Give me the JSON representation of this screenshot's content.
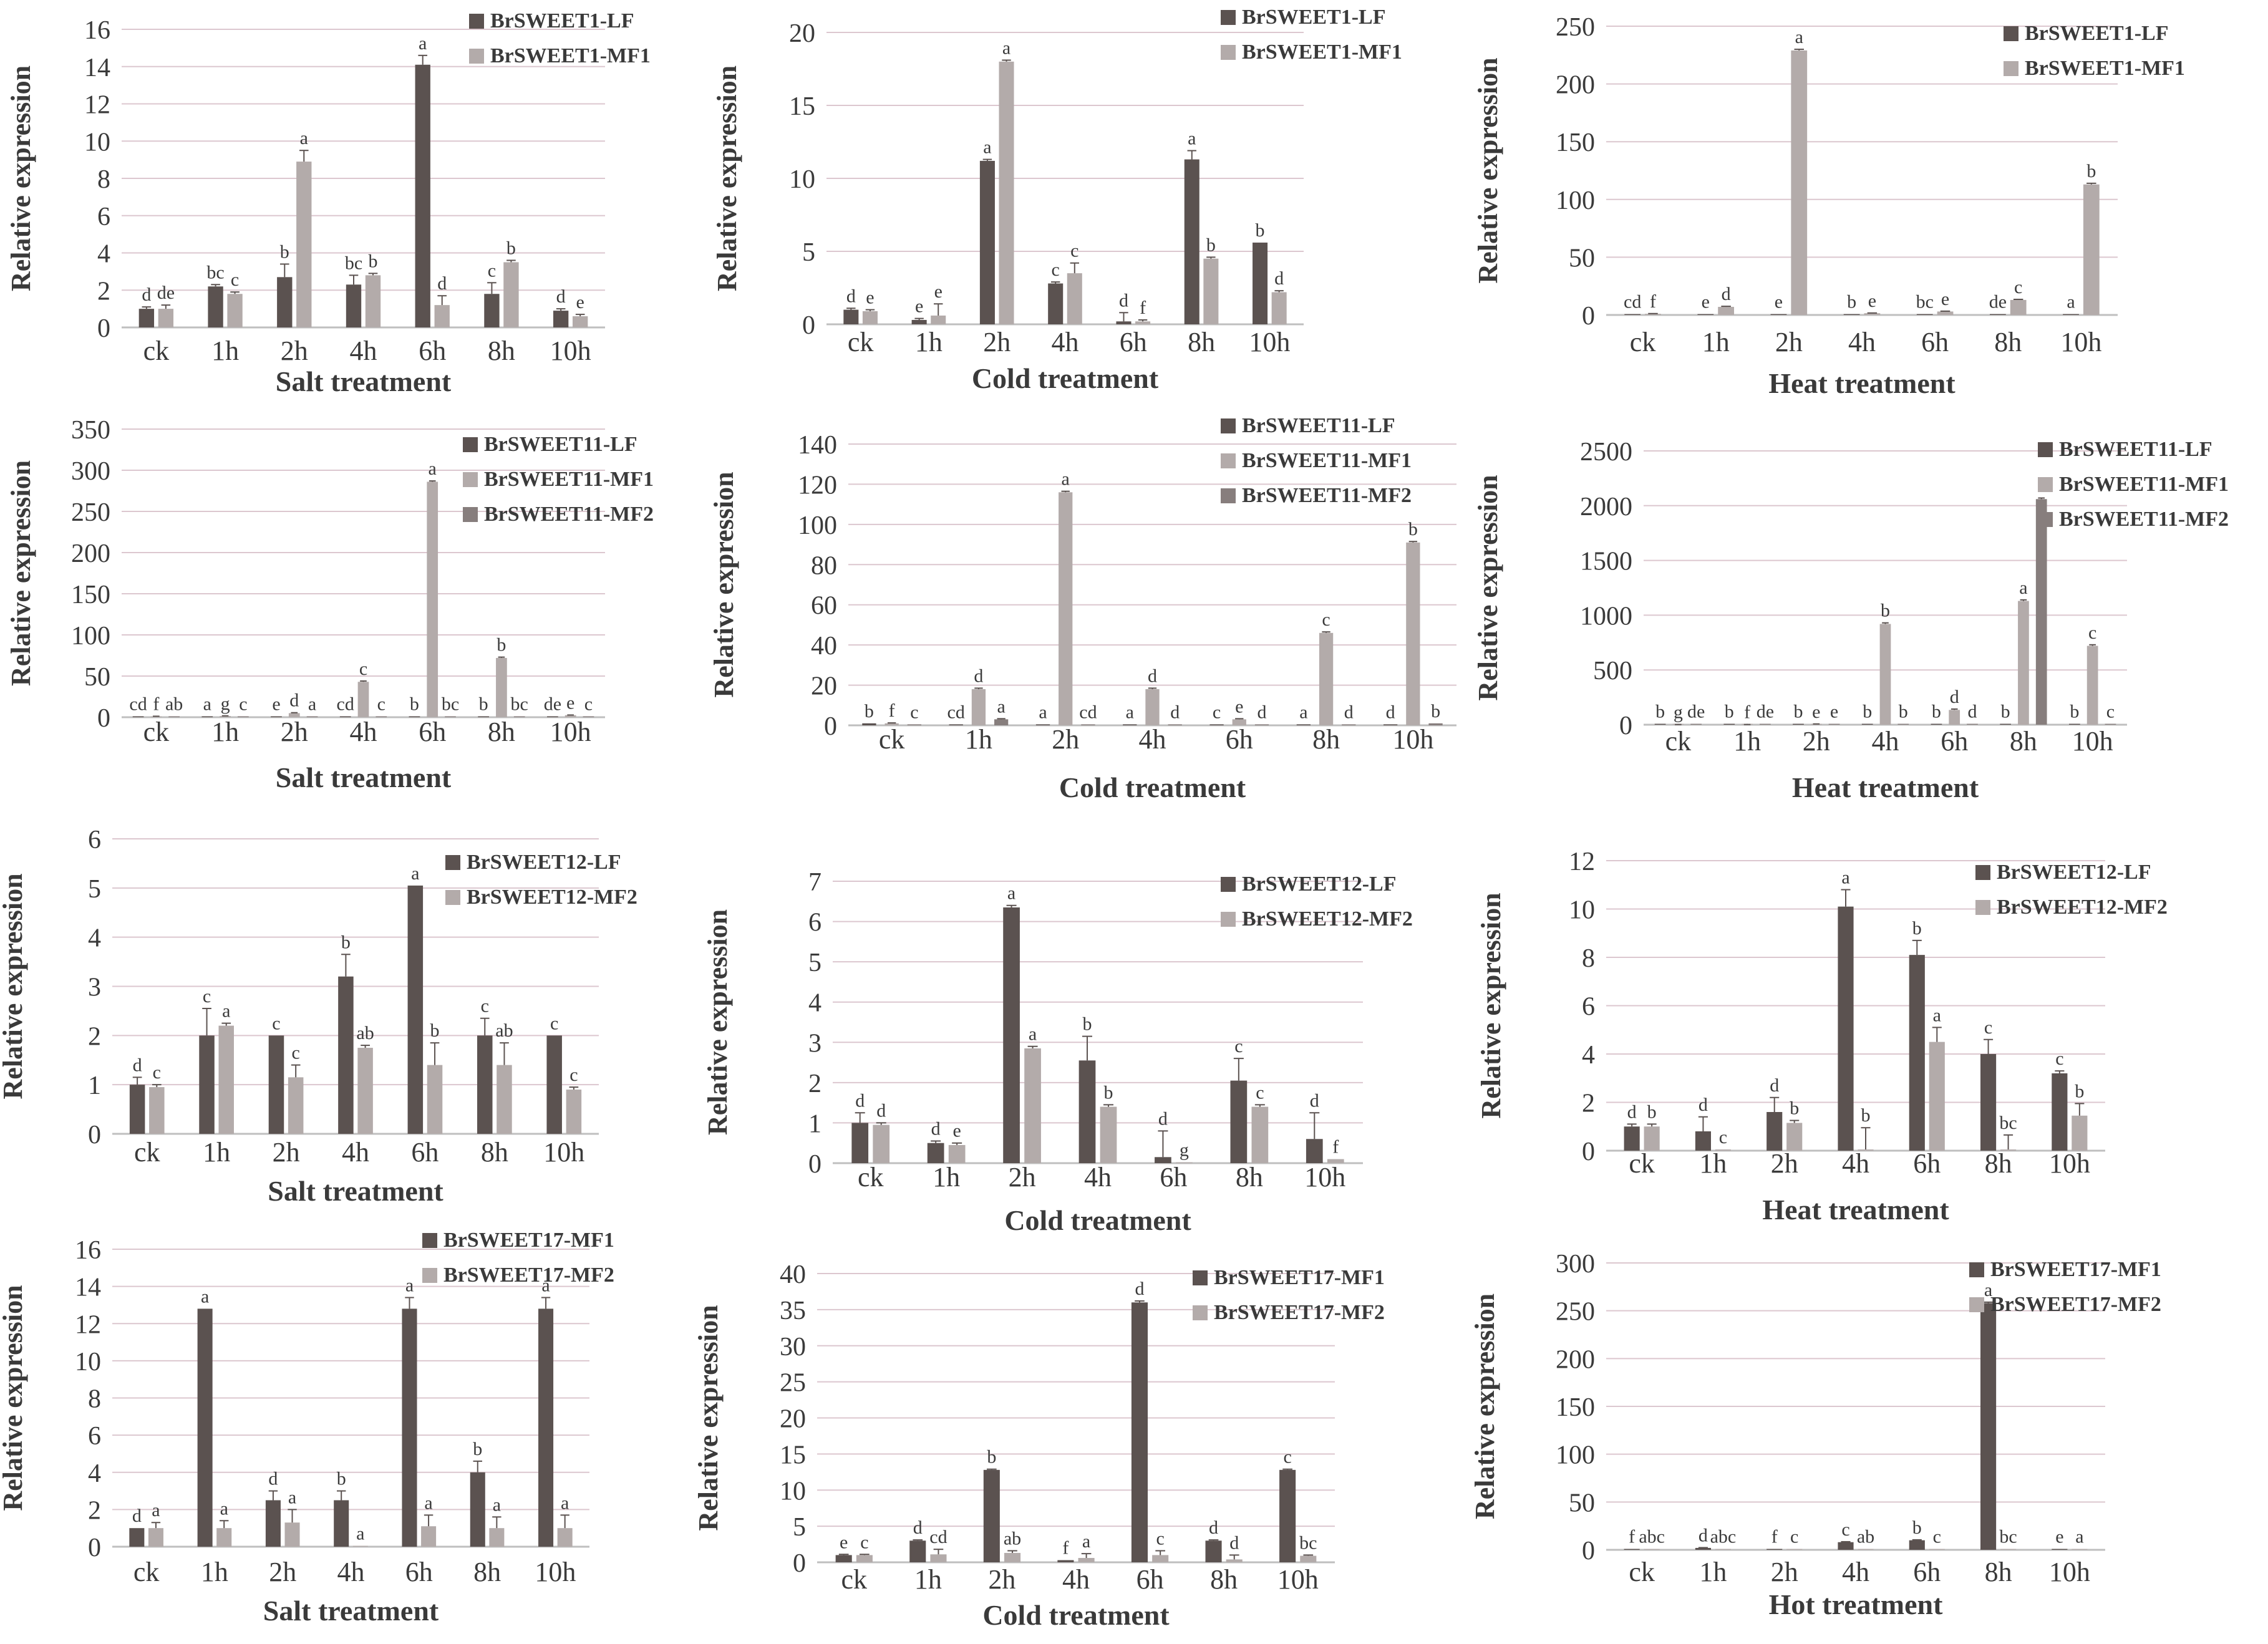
{
  "figure": {
    "times": [
      "ck",
      "1h",
      "2h",
      "4h",
      "6h",
      "8h",
      "10h"
    ],
    "ylabel": "Relative expression",
    "colors": {
      "dark": "#5b5250",
      "light": "#b3abaa",
      "mid": "#877e7d",
      "grid": "#dcc7cf",
      "axis": "#bfbfbf",
      "text": "#3a3a3a"
    }
  },
  "chart_data": [
    {
      "type": "bar",
      "title": "",
      "xlabel": "Salt treatment",
      "ylabel": "Relative expression",
      "categories": [
        "ck",
        "1h",
        "2h",
        "4h",
        "6h",
        "8h",
        "10h"
      ],
      "ylim": [
        0,
        16
      ],
      "yticks": [
        0,
        2,
        4,
        6,
        8,
        10,
        12,
        14,
        16
      ],
      "series": [
        {
          "name": "BrSWEET1-LF",
          "values": [
            1.0,
            2.2,
            2.7,
            2.3,
            14.1,
            1.8,
            0.9
          ],
          "errors": [
            0.1,
            0.1,
            0.7,
            0.5,
            0.5,
            0.6,
            0.1
          ],
          "letters": [
            "d",
            "bc",
            "b",
            "bc",
            "a",
            "c",
            "d"
          ]
        },
        {
          "name": "BrSWEET1-MF1",
          "values": [
            1.0,
            1.8,
            8.9,
            2.8,
            1.2,
            3.5,
            0.6
          ],
          "errors": [
            0.2,
            0.1,
            0.6,
            0.1,
            0.5,
            0.1,
            0.1
          ],
          "letters": [
            "de",
            "c",
            "a",
            "b",
            "d",
            "b",
            "e"
          ]
        }
      ]
    },
    {
      "type": "bar",
      "title": "",
      "xlabel": "Cold treatment",
      "ylabel": "Relative expression",
      "categories": [
        "ck",
        "1h",
        "2h",
        "4h",
        "6h",
        "8h",
        "10h"
      ],
      "ylim": [
        0,
        20
      ],
      "yticks": [
        0,
        5,
        10,
        15,
        20
      ],
      "series": [
        {
          "name": "BrSWEET1-LF",
          "values": [
            1.0,
            0.3,
            11.2,
            2.8,
            0.2,
            11.3,
            5.6
          ],
          "errors": [
            0.1,
            0.1,
            0.1,
            0.1,
            0.6,
            0.6,
            0.0
          ],
          "letters": [
            "d",
            "e",
            "a",
            "c",
            "d",
            "a",
            "b"
          ]
        },
        {
          "name": "BrSWEET1-MF1",
          "values": [
            0.9,
            0.6,
            18.0,
            3.5,
            0.2,
            4.5,
            2.2
          ],
          "errors": [
            0.1,
            0.8,
            0.1,
            0.7,
            0.1,
            0.1,
            0.1
          ],
          "letters": [
            "e",
            "e",
            "a",
            "c",
            "f",
            "b",
            "d"
          ]
        }
      ]
    },
    {
      "type": "bar",
      "title": "",
      "xlabel": "Heat treatment",
      "ylabel": "Relative expression",
      "categories": [
        "ck",
        "1h",
        "2h",
        "4h",
        "6h",
        "8h",
        "10h"
      ],
      "ylim": [
        0,
        250
      ],
      "yticks": [
        0,
        50,
        100,
        150,
        200,
        250
      ],
      "series": [
        {
          "name": "BrSWEET1-LF",
          "values": [
            0.5,
            0.5,
            0.5,
            0.5,
            0.5,
            0.5,
            0.5
          ],
          "errors": [
            0,
            0,
            0,
            0,
            0,
            0,
            0
          ],
          "letters": [
            "cd",
            "e",
            "e",
            "b",
            "bc",
            "de",
            "a"
          ]
        },
        {
          "name": "BrSWEET1-MF1",
          "values": [
            1.0,
            7.0,
            229.0,
            1.5,
            3.0,
            13.0,
            113.0
          ],
          "errors": [
            0.2,
            0.5,
            1.0,
            0.2,
            0.3,
            0.5,
            1.0
          ],
          "letters": [
            "f",
            "d",
            "a",
            "e",
            "e",
            "c",
            "b"
          ]
        }
      ]
    },
    {
      "type": "bar",
      "title": "",
      "xlabel": "Salt treatment",
      "ylabel": "Relative expression",
      "categories": [
        "ck",
        "1h",
        "2h",
        "4h",
        "6h",
        "8h",
        "10h"
      ],
      "ylim": [
        0,
        350
      ],
      "yticks": [
        0,
        50,
        100,
        150,
        200,
        250,
        300,
        350
      ],
      "series": [
        {
          "name": "BrSWEET11-LF",
          "values": [
            0.5,
            0.5,
            0.5,
            0.5,
            0.5,
            0.5,
            0.5
          ],
          "errors": [
            0,
            0,
            0,
            0,
            0,
            0,
            0
          ],
          "letters": [
            "cd",
            "a",
            "e",
            "cd",
            "b",
            "b",
            "de"
          ]
        },
        {
          "name": "BrSWEET11-MF1",
          "values": [
            1.0,
            1.5,
            5.0,
            43.0,
            286.0,
            72.0,
            2.5
          ],
          "errors": [
            0.2,
            0.2,
            0.5,
            1.0,
            1.0,
            1.0,
            0.2
          ],
          "letters": [
            "f",
            "g",
            "d",
            "c",
            "a",
            "b",
            "e"
          ]
        },
        {
          "name": "BrSWEET11-MF2",
          "values": [
            1.0,
            0.5,
            1.0,
            0.5,
            1.0,
            1.0,
            0.5
          ],
          "errors": [
            0,
            0,
            0,
            0,
            0,
            0,
            0
          ],
          "letters": [
            "ab",
            "c",
            "a",
            "c",
            "bc",
            "bc",
            "c"
          ]
        }
      ]
    },
    {
      "type": "bar",
      "title": "",
      "xlabel": "Cold treatment",
      "ylabel": "Relative expression",
      "categories": [
        "ck",
        "1h",
        "2h",
        "4h",
        "6h",
        "8h",
        "10h"
      ],
      "ylim": [
        0,
        140
      ],
      "yticks": [
        0,
        20,
        40,
        60,
        80,
        100,
        120,
        140
      ],
      "series": [
        {
          "name": "BrSWEET11-LF",
          "values": [
            1.0,
            0.5,
            0.5,
            0.5,
            0.5,
            0.5,
            0.5
          ],
          "errors": [
            0,
            0,
            0,
            0,
            0,
            0,
            0
          ],
          "letters": [
            "b",
            "cd",
            "a",
            "a",
            "c",
            "a",
            "d"
          ]
        },
        {
          "name": "BrSWEET11-MF1",
          "values": [
            1.0,
            18.0,
            116.0,
            18.0,
            3.0,
            46.0,
            91.0
          ],
          "errors": [
            0.2,
            0.5,
            0.5,
            0.5,
            0.3,
            0.5,
            0.5
          ],
          "letters": [
            "f",
            "d",
            "a",
            "d",
            "e",
            "c",
            "b"
          ]
        },
        {
          "name": "BrSWEET11-MF2",
          "values": [
            0.5,
            3.0,
            0.5,
            0.5,
            0.5,
            0.5,
            1.0
          ],
          "errors": [
            0,
            0.3,
            0,
            0,
            0,
            0,
            0
          ],
          "letters": [
            "c",
            "a",
            "cd",
            "d",
            "d",
            "d",
            "b"
          ]
        }
      ]
    },
    {
      "type": "bar",
      "title": "",
      "xlabel": "Heat treatment",
      "ylabel": "Relative expression",
      "categories": [
        "ck",
        "1h",
        "2h",
        "4h",
        "6h",
        "8h",
        "10h"
      ],
      "ylim": [
        0,
        2500
      ],
      "yticks": [
        0,
        500,
        1000,
        1500,
        2000,
        2500
      ],
      "series": [
        {
          "name": "BrSWEET11-LF",
          "values": [
            1.0,
            1.0,
            1.0,
            1.0,
            1.0,
            1.0,
            1.0
          ],
          "errors": [
            0,
            0,
            0,
            0,
            0,
            0,
            0
          ],
          "letters": [
            "b",
            "b",
            "b",
            "b",
            "b",
            "b",
            "b"
          ]
        },
        {
          "name": "BrSWEET11-MF1",
          "values": [
            1.0,
            1.0,
            5.0,
            920.0,
            135.0,
            1130.0,
            720.0
          ],
          "errors": [
            1,
            1,
            2,
            10,
            8,
            10,
            10
          ],
          "letters": [
            "g",
            "f",
            "e",
            "b",
            "d",
            "a",
            "c"
          ]
        },
        {
          "name": "BrSWEET11-MF2",
          "values": [
            1.0,
            1.0,
            1.0,
            1.0,
            5.0,
            2060.0,
            1.0
          ],
          "errors": [
            0,
            0,
            0,
            0,
            0,
            10,
            0
          ],
          "letters": [
            "de",
            "de",
            "e",
            "b",
            "d",
            "a",
            "c"
          ]
        }
      ]
    },
    {
      "type": "bar",
      "title": "",
      "xlabel": "Salt treatment",
      "ylabel": "Relative expression",
      "categories": [
        "ck",
        "1h",
        "2h",
        "4h",
        "6h",
        "8h",
        "10h"
      ],
      "ylim": [
        0,
        6
      ],
      "yticks": [
        0,
        1,
        2,
        3,
        4,
        5,
        6
      ],
      "series": [
        {
          "name": "BrSWEET12-LF",
          "values": [
            1.0,
            2.0,
            2.0,
            3.2,
            5.05,
            2.0,
            2.0
          ],
          "errors": [
            0.15,
            0.55,
            0.0,
            0.45,
            0.0,
            0.35,
            0.0
          ],
          "letters": [
            "d",
            "c",
            "c",
            "b",
            "a",
            "c",
            "c"
          ]
        },
        {
          "name": "BrSWEET12-MF2",
          "values": [
            0.95,
            2.2,
            1.15,
            1.75,
            1.4,
            1.4,
            0.9
          ],
          "errors": [
            0.05,
            0.05,
            0.25,
            0.05,
            0.45,
            0.45,
            0.05
          ],
          "letters": [
            "c",
            "a",
            "c",
            "ab",
            "b",
            "ab",
            "c"
          ]
        }
      ]
    },
    {
      "type": "bar",
      "title": "",
      "xlabel": "Cold treatment",
      "ylabel": "Relative expression",
      "categories": [
        "ck",
        "1h",
        "2h",
        "4h",
        "6h",
        "8h",
        "10h"
      ],
      "ylim": [
        0,
        7
      ],
      "yticks": [
        0,
        1,
        2,
        3,
        4,
        5,
        6,
        7
      ],
      "series": [
        {
          "name": "BrSWEET12-LF",
          "values": [
            1.0,
            0.5,
            6.35,
            2.55,
            0.15,
            2.05,
            0.6
          ],
          "errors": [
            0.25,
            0.05,
            0.05,
            0.6,
            0.65,
            0.55,
            0.65
          ],
          "letters": [
            "d",
            "d",
            "a",
            "b",
            "d",
            "c",
            "d"
          ]
        },
        {
          "name": "BrSWEET12-MF2",
          "values": [
            0.95,
            0.45,
            2.85,
            1.4,
            0.02,
            1.4,
            0.1
          ],
          "errors": [
            0.05,
            0.05,
            0.05,
            0.05,
            0.0,
            0.05,
            0.0
          ],
          "letters": [
            "d",
            "e",
            "a",
            "b",
            "g",
            "c",
            "f"
          ]
        }
      ]
    },
    {
      "type": "bar",
      "title": "",
      "xlabel": "Heat treatment",
      "ylabel": "Relative expression",
      "categories": [
        "ck",
        "1h",
        "2h",
        "4h",
        "6h",
        "8h",
        "10h"
      ],
      "ylim": [
        0,
        12
      ],
      "yticks": [
        0,
        2,
        4,
        6,
        8,
        10,
        12
      ],
      "series": [
        {
          "name": "BrSWEET12-LF",
          "values": [
            1.0,
            0.8,
            1.6,
            10.1,
            8.1,
            4.0,
            3.2
          ],
          "errors": [
            0.1,
            0.6,
            0.6,
            0.7,
            0.6,
            0.6,
            0.1
          ],
          "letters": [
            "d",
            "d",
            "d",
            "a",
            "b",
            "c",
            "c"
          ]
        },
        {
          "name": "BrSWEET12-MF2",
          "values": [
            1.0,
            0.05,
            1.15,
            0.05,
            4.5,
            0.05,
            1.45
          ],
          "errors": [
            0.1,
            0.0,
            0.1,
            0.9,
            0.6,
            0.6,
            0.5
          ],
          "letters": [
            "b",
            "c",
            "b",
            "b",
            "a",
            "bc",
            "b"
          ]
        }
      ]
    },
    {
      "type": "bar",
      "title": "",
      "xlabel": "Salt treatment",
      "ylabel": "Relative expression",
      "categories": [
        "ck",
        "1h",
        "2h",
        "4h",
        "6h",
        "8h",
        "10h"
      ],
      "ylim": [
        0,
        16
      ],
      "yticks": [
        0,
        2,
        4,
        6,
        8,
        10,
        12,
        14,
        16
      ],
      "series": [
        {
          "name": "BrSWEET17-MF1",
          "values": [
            1.0,
            12.8,
            2.5,
            2.5,
            12.8,
            4.0,
            12.8
          ],
          "errors": [
            0.0,
            0.0,
            0.5,
            0.5,
            0.6,
            0.6,
            0.6
          ],
          "letters": [
            "d",
            "a",
            "d",
            "b",
            "a",
            "b",
            "a"
          ]
        },
        {
          "name": "BrSWEET17-MF2",
          "values": [
            1.0,
            1.0,
            1.3,
            0.02,
            1.1,
            1.0,
            1.0
          ],
          "errors": [
            0.3,
            0.4,
            0.7,
            0.0,
            0.6,
            0.6,
            0.7
          ],
          "letters": [
            "a",
            "a",
            "a",
            "a",
            "a",
            "a",
            "a"
          ]
        }
      ]
    },
    {
      "type": "bar",
      "title": "",
      "xlabel": "Cold treatment",
      "ylabel": "Relative expression",
      "categories": [
        "ck",
        "1h",
        "2h",
        "4h",
        "6h",
        "8h",
        "10h"
      ],
      "ylim": [
        0,
        40
      ],
      "yticks": [
        0,
        5,
        10,
        15,
        20,
        25,
        30,
        35,
        40
      ],
      "series": [
        {
          "name": "BrSWEET17-MF1",
          "values": [
            1.0,
            3.0,
            12.8,
            0.3,
            36.0,
            3.0,
            12.8
          ],
          "errors": [
            0.1,
            0.1,
            0.1,
            0.0,
            0.2,
            0.1,
            0.1
          ],
          "letters": [
            "e",
            "d",
            "b",
            "f",
            "d",
            "d",
            "c"
          ]
        },
        {
          "name": "BrSWEET17-MF2",
          "values": [
            1.0,
            1.1,
            1.3,
            0.6,
            1.0,
            0.4,
            0.9
          ],
          "errors": [
            0.1,
            0.7,
            0.3,
            0.6,
            0.6,
            0.6,
            0.1
          ],
          "letters": [
            "c",
            "cd",
            "ab",
            "a",
            "c",
            "d",
            "bc"
          ]
        }
      ]
    },
    {
      "type": "bar",
      "title": "",
      "xlabel": "Hot treatment",
      "ylabel": "Relative expression",
      "categories": [
        "ck",
        "1h",
        "2h",
        "4h",
        "6h",
        "8h",
        "10h"
      ],
      "ylim": [
        0,
        300
      ],
      "yticks": [
        0,
        50,
        100,
        150,
        200,
        250,
        300
      ],
      "series": [
        {
          "name": "BrSWEET17-MF1",
          "values": [
            0.5,
            2.0,
            0.5,
            8.0,
            10.0,
            258.0,
            0.5
          ],
          "errors": [
            0,
            0.3,
            0,
            0.5,
            0.5,
            1.0,
            0
          ],
          "letters": [
            "f",
            "d",
            "f",
            "c",
            "b",
            "a",
            "e"
          ]
        },
        {
          "name": "BrSWEET17-MF2",
          "values": [
            0.5,
            0.5,
            0.5,
            0.5,
            0.5,
            0.5,
            0.5
          ],
          "errors": [
            0,
            0,
            0,
            0,
            0,
            0,
            0
          ],
          "letters": [
            "abc",
            "abc",
            "c",
            "ab",
            "c",
            "bc",
            "a"
          ]
        }
      ]
    }
  ]
}
